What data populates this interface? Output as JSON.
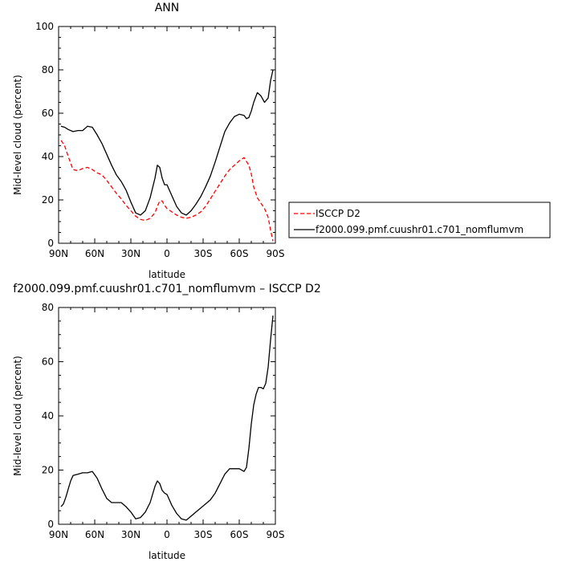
{
  "chart_data": [
    {
      "type": "line",
      "title": "ANN",
      "xlabel": "latitude",
      "ylabel": "Mid-level cloud (percent)",
      "xlim": [
        90,
        -90
      ],
      "ylim": [
        0,
        100
      ],
      "xticks": [
        90,
        60,
        30,
        0,
        -30,
        -60,
        -90
      ],
      "xtick_labels": [
        "90N",
        "60N",
        "30N",
        "0",
        "30S",
        "60S",
        "90S"
      ],
      "yticks": [
        0,
        20,
        40,
        60,
        80,
        100
      ],
      "ytick_labels": [
        "0",
        "20",
        "40",
        "60",
        "80",
        "100"
      ],
      "legend_placement": "right",
      "series": [
        {
          "name": "ISCCP D2",
          "color": "#ff0000",
          "dash": "dashed",
          "x": [
            88,
            85,
            82,
            78,
            74,
            70,
            66,
            62,
            58,
            54,
            50,
            46,
            42,
            38,
            34,
            30,
            26,
            22,
            18,
            14,
            10,
            8,
            6,
            4,
            2,
            0,
            -4,
            -8,
            -12,
            -16,
            -20,
            -24,
            -28,
            -32,
            -36,
            -40,
            -44,
            -48,
            -52,
            -56,
            -60,
            -64,
            -68,
            -70,
            -72,
            -75,
            -78,
            -81,
            -84,
            -86,
            -88
          ],
          "y": [
            47.5,
            45,
            40,
            34,
            33.5,
            34.5,
            35,
            34,
            32.5,
            31.5,
            29,
            26,
            23,
            20.5,
            17.5,
            15,
            12.5,
            11,
            10.5,
            11.5,
            14,
            17,
            19.5,
            19.5,
            17.5,
            16,
            14.5,
            13,
            12,
            11.5,
            12,
            13,
            14.5,
            17,
            20.5,
            24,
            27.5,
            31,
            34,
            36,
            38,
            39.5,
            36,
            32,
            26,
            21,
            18.5,
            16,
            12,
            6,
            1
          ]
        },
        {
          "name": "f2000.099.pmf.cuushr01.c701_nomflumvm",
          "color": "#000000",
          "dash": "solid",
          "x": [
            88,
            85,
            82,
            78,
            74,
            70,
            66,
            62,
            58,
            54,
            50,
            46,
            42,
            38,
            34,
            30,
            26,
            22,
            18,
            14,
            10,
            8,
            6,
            4,
            2,
            0,
            -4,
            -8,
            -12,
            -16,
            -20,
            -24,
            -28,
            -32,
            -36,
            -40,
            -44,
            -48,
            -52,
            -56,
            -60,
            -64,
            -66,
            -68,
            -70,
            -72,
            -75,
            -78,
            -81,
            -84,
            -86,
            -88
          ],
          "y": [
            54,
            53.5,
            52.5,
            51.5,
            52,
            52,
            54,
            53.5,
            50,
            46,
            41,
            36,
            31.5,
            28.5,
            24.5,
            19,
            14,
            13,
            15,
            21,
            30,
            36,
            35,
            30,
            27,
            27,
            22,
            17,
            14,
            13,
            15,
            18,
            21.5,
            26,
            31,
            37.5,
            44.5,
            51.5,
            55.5,
            58.5,
            59.5,
            59,
            57.5,
            58,
            61,
            65,
            69.5,
            68,
            65,
            67,
            75,
            80
          ]
        }
      ]
    },
    {
      "type": "line",
      "title": "f2000.099.pmf.cuushr01.c701_nomflumvm – ISCCP D2",
      "xlabel": "latitude",
      "ylabel": "Mid-level cloud (percent)",
      "xlim": [
        90,
        -90
      ],
      "ylim": [
        0,
        80
      ],
      "xticks": [
        90,
        60,
        30,
        0,
        -30,
        -60,
        -90
      ],
      "xtick_labels": [
        "90N",
        "60N",
        "30N",
        "0",
        "30S",
        "60S",
        "90S"
      ],
      "yticks": [
        0,
        20,
        40,
        60,
        80
      ],
      "ytick_labels": [
        "0",
        "20",
        "40",
        "60",
        "80"
      ],
      "series": [
        {
          "color": "#000000",
          "dash": "solid",
          "x": [
            88,
            86,
            84,
            82,
            80,
            78,
            74,
            70,
            66,
            62,
            58,
            54,
            50,
            46,
            42,
            38,
            34,
            30,
            26,
            22,
            18,
            14,
            10,
            8,
            6,
            4,
            2,
            0,
            -4,
            -8,
            -12,
            -16,
            -20,
            -24,
            -28,
            -32,
            -36,
            -40,
            -44,
            -48,
            -52,
            -56,
            -60,
            -64,
            -66,
            -68,
            -70,
            -72,
            -74,
            -76,
            -78,
            -80,
            -82,
            -84,
            -86,
            -88
          ],
          "y": [
            6.5,
            7.5,
            10,
            13,
            16,
            18,
            18.5,
            19,
            19,
            19.5,
            17,
            13,
            9.5,
            8,
            8,
            8,
            6.5,
            4.5,
            2,
            2.5,
            4.5,
            8,
            14,
            16,
            15,
            12.5,
            11.5,
            11,
            7,
            4,
            2,
            1.5,
            3,
            4.5,
            6,
            7.5,
            9,
            11.5,
            15,
            18.5,
            20.5,
            20.5,
            20.5,
            19.5,
            21,
            28,
            37,
            44,
            48,
            50.5,
            50.5,
            50,
            52,
            58,
            68,
            77
          ]
        }
      ]
    }
  ]
}
